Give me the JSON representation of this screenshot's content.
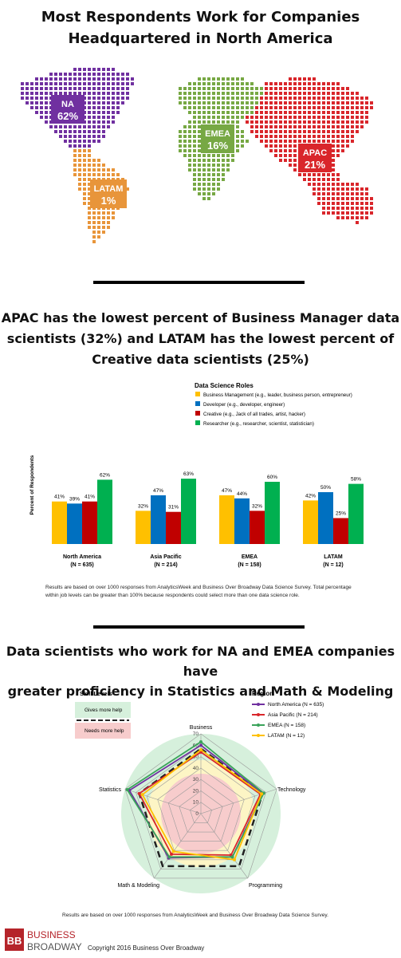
{
  "section1": {
    "title_line1": "Most Respondents Work for Companies",
    "title_line2": "Headquartered in North America",
    "regions": [
      {
        "code": "NA",
        "pct": "62%",
        "color": "#7030a0"
      },
      {
        "code": "LATAM",
        "pct": "1%",
        "color": "#e8953a"
      },
      {
        "code": "EMEA",
        "pct": "16%",
        "color": "#77a844"
      },
      {
        "code": "APAC",
        "pct": "21%",
        "color": "#d9262b"
      }
    ]
  },
  "section2": {
    "title_line1": "APAC has the lowest percent of Business Manager data",
    "title_line2": "scientists (32%) and LATAM has the lowest percent of",
    "title_line3": "Creative data scientists (25%)",
    "note_line1": "Results are based on over 1000 responses from AnalyticsWeek and Business Over Broadway  Data Science Survey.  Total percentage",
    "note_line2": "within job levels can be greater than 100% because respondents could select more than one data science role."
  },
  "section3": {
    "title_line1": "Data scientists who work for NA and EMEA companies have",
    "title_line2": "greater proficiency in Statistics and Math & Modeling",
    "note": "Results are based on over 1000 responses from AnalyticsWeek and Business Over Broadway  Data Science Survey."
  },
  "footer": {
    "brand_line1": "BUSINESS",
    "brand_line2": "BROADWAY",
    "logo_letters": "BB",
    "copyright": "Copyright 2016 Business Over Broadway"
  },
  "chart_data": [
    {
      "type": "bar",
      "legend_title": "Data Science Roles",
      "ylabel": "Percent of Respondents",
      "categories": [
        "North America",
        "Asia Pacific",
        "EMEA",
        "LATAM"
      ],
      "category_n": [
        "(N = 635)",
        "(N = 214)",
        "(N = 158)",
        "(N = 12)"
      ],
      "ylim": [
        0,
        100
      ],
      "series": [
        {
          "name": "Business Management (e.g., leader, business person,  entrepreneur)",
          "color": "#ffc000",
          "values": [
            41,
            32,
            47,
            42
          ]
        },
        {
          "name": "Developer (e.g., developer,  engineer)",
          "color": "#0070c0",
          "values": [
            39,
            47,
            44,
            50
          ]
        },
        {
          "name": "Creative (e.g., Jack of all trades, artist, hacker)",
          "color": "#c00000",
          "values": [
            41,
            31,
            32,
            25
          ]
        },
        {
          "name": "Researcher (e.g., researcher, scientist, statistician)",
          "color": "#00b050",
          "values": [
            62,
            63,
            60,
            58
          ]
        }
      ]
    },
    {
      "type": "radar",
      "axes": [
        "Business",
        "Technology",
        "Programming",
        "Math & Modeling",
        "Statistics"
      ],
      "ticks": [
        0,
        10,
        20,
        30,
        40,
        50,
        60,
        70
      ],
      "rmax": 70,
      "legend_title": "Region",
      "skill_title": "Skill Levels",
      "skill_legend": [
        {
          "label": "Gives more help",
          "color": "#d6f0dc"
        },
        {
          "label": "Needs more help",
          "color": "#f7cccc"
        }
      ],
      "zones": [
        {
          "name": "gives more help",
          "value": 70,
          "color": "#d6f0dc"
        },
        {
          "name": "middle",
          "value": 47,
          "color": "#fdf5c5"
        },
        {
          "name": "needs more help",
          "value": 35,
          "color": "#f7cccc"
        }
      ],
      "threshold": 57,
      "series": [
        {
          "name": "North America (N = 635)",
          "color": "#7030a0",
          "values": [
            60,
            57,
            47,
            48,
            66
          ]
        },
        {
          "name": "Asia Pacific (N = 214)",
          "color": "#d9262b",
          "values": [
            54,
            55,
            45,
            44,
            57
          ]
        },
        {
          "name": "EMEA (N = 158)",
          "color": "#3aa35a",
          "values": [
            63,
            58,
            47,
            47,
            68
          ]
        },
        {
          "name": "LATAM (N = 12)",
          "color": "#ffc000",
          "values": [
            56,
            56,
            50,
            41,
            54
          ]
        }
      ]
    }
  ]
}
